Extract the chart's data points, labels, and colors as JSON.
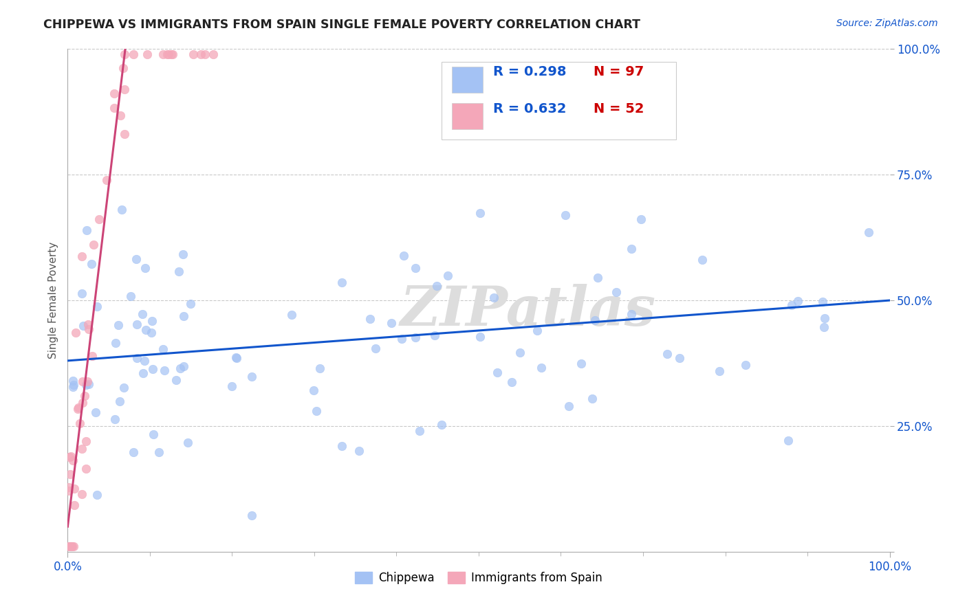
{
  "title": "CHIPPEWA VS IMMIGRANTS FROM SPAIN SINGLE FEMALE POVERTY CORRELATION CHART",
  "source_text": "Source: ZipAtlas.com",
  "ylabel": "Single Female Poverty",
  "watermark": "ZIPatlas",
  "chippewa_R": 0.298,
  "chippewa_N": 97,
  "spain_R": 0.632,
  "spain_N": 52,
  "blue_dot_color": "#a4c2f4",
  "pink_dot_color": "#f4a7b9",
  "blue_line_color": "#1155cc",
  "pink_line_color": "#cc4477",
  "bg_color": "#ffffff",
  "grid_color": "#bbbbbb",
  "legend_R_color": "#1155cc",
  "legend_N_color": "#cc0000",
  "xlim": [
    0.0,
    100.0
  ],
  "ylim": [
    0.0,
    100.0
  ],
  "ytick_positions": [
    25,
    50,
    75,
    100
  ],
  "ytick_labels": [
    "25.0%",
    "50.0%",
    "75.0%",
    "100.0%"
  ],
  "xtick_labels": [
    "0.0%",
    "100.0%"
  ],
  "blue_trend_start_y": 38.0,
  "blue_trend_end_y": 50.0,
  "pink_trend_x0": 0.0,
  "pink_trend_x1": 7.0,
  "pink_trend_y0": 5.0,
  "pink_trend_y1": 100.0
}
